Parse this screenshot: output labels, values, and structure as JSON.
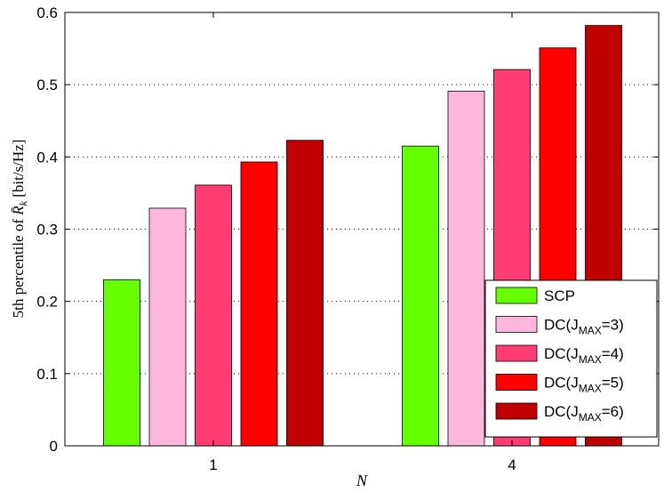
{
  "chart_data": {
    "type": "bar",
    "categories": [
      "1",
      "4"
    ],
    "xlabel": "N",
    "ylabel": "5th percentile of R̄_k [bit/s/Hz]",
    "ylabel_parts": {
      "prefix": "5th percentile of ",
      "symbol": "R̄",
      "subscript": "k",
      "unit": " [bit/s/Hz]"
    },
    "ylim": [
      0,
      0.6
    ],
    "yticks": [
      "0",
      "0.1",
      "0.2",
      "0.3",
      "0.4",
      "0.5",
      "0.6"
    ],
    "grid": "horizontal-dotted",
    "legend_position": "bottom-right",
    "series": [
      {
        "name": "SCP",
        "legend": {
          "main": "SCP",
          "sub": "",
          "tail": ""
        },
        "color": "#66ff00",
        "values": [
          0.23,
          0.415
        ]
      },
      {
        "name": "DC(JMAX=3)",
        "legend": {
          "main": "DC(J",
          "sub": "MAX",
          "tail": "=3)"
        },
        "color": "#ffb6dc",
        "values": [
          0.329,
          0.491
        ]
      },
      {
        "name": "DC(JMAX=4)",
        "legend": {
          "main": "DC(J",
          "sub": "MAX",
          "tail": "=4)"
        },
        "color": "#ff3d74",
        "values": [
          0.361,
          0.521
        ]
      },
      {
        "name": "DC(JMAX=5)",
        "legend": {
          "main": "DC(J",
          "sub": "MAX",
          "tail": "=5)"
        },
        "color": "#ff0000",
        "values": [
          0.393,
          0.551
        ]
      },
      {
        "name": "DC(JMAX=6)",
        "legend": {
          "main": "DC(J",
          "sub": "MAX",
          "tail": "=6)"
        },
        "color": "#c00000",
        "values": [
          0.423,
          0.582
        ]
      }
    ]
  }
}
